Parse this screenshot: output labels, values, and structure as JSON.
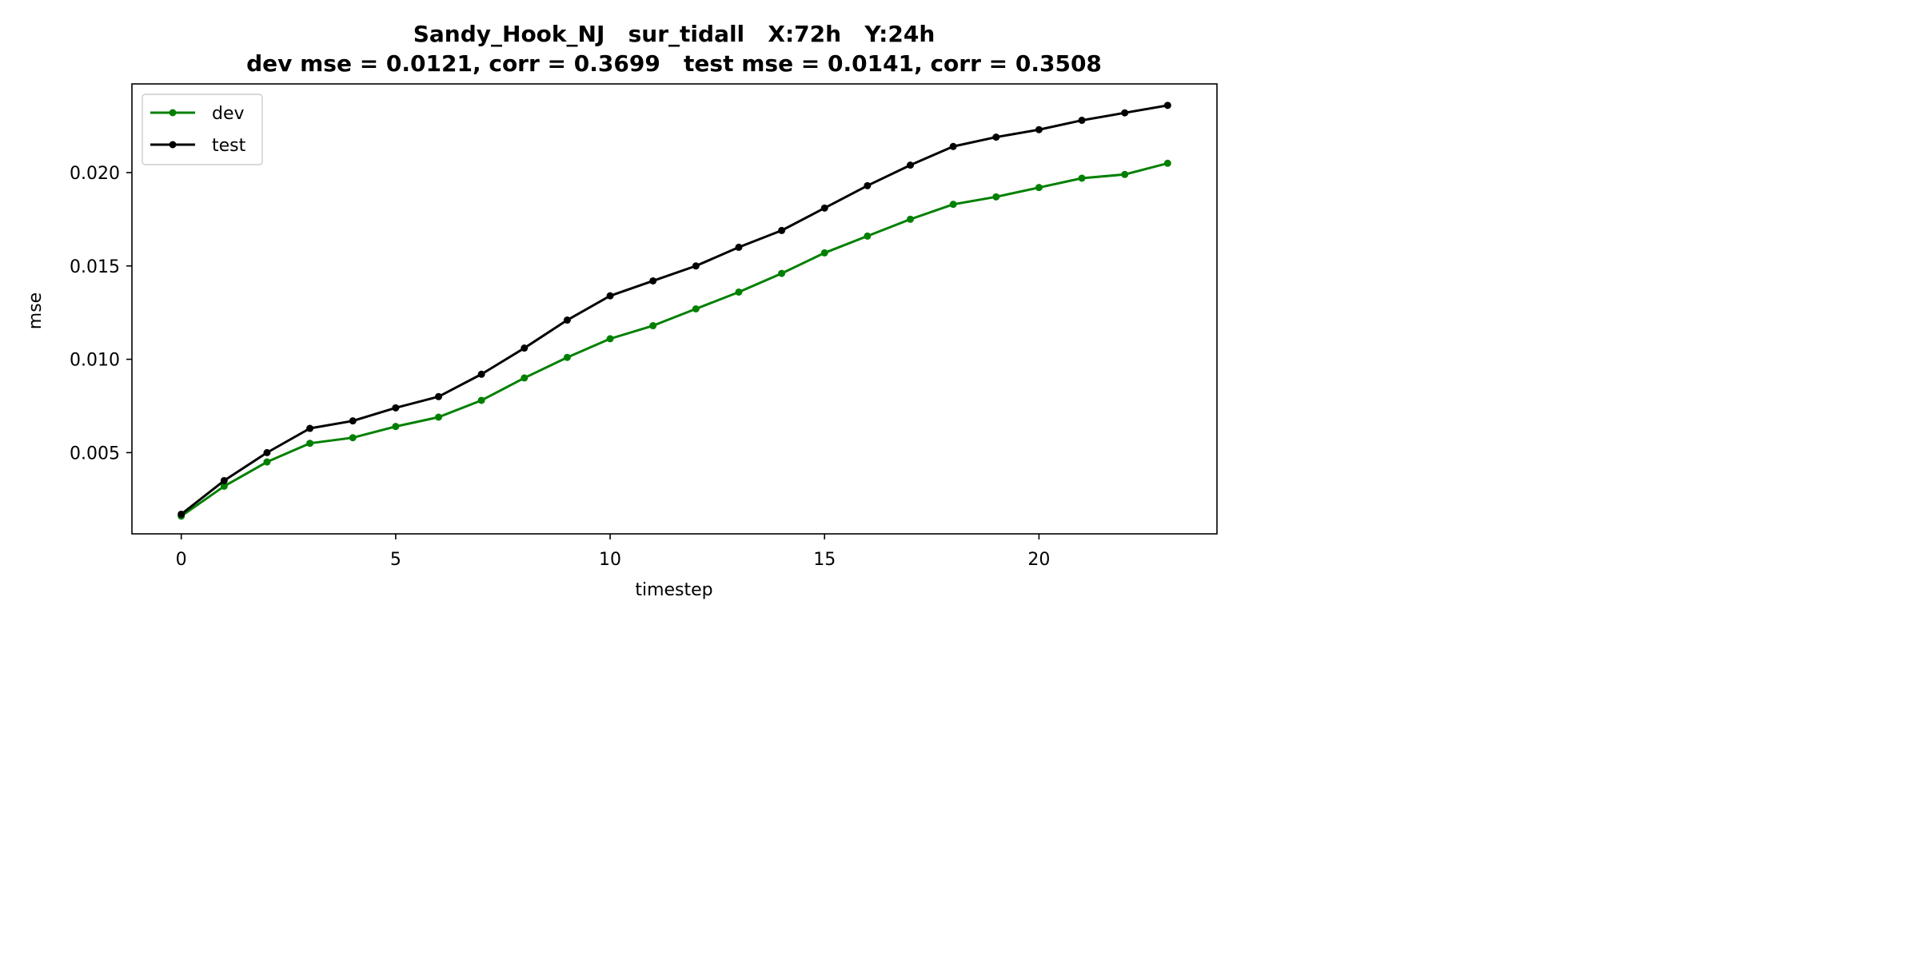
{
  "chart_data": {
    "type": "line",
    "title": "Sandy_Hook_NJ   sur_tidall   X:72h   Y:24h",
    "subtitle": "dev mse = 0.0121, corr = 0.3699   test mse = 0.0141, corr = 0.3508",
    "xlabel": "timestep",
    "ylabel": "mse",
    "xlim": [
      -1.15,
      24.15
    ],
    "ylim": [
      0.00065,
      0.02475
    ],
    "xticks": [
      0,
      5,
      10,
      15,
      20
    ],
    "xtick_labels": [
      "0",
      "5",
      "10",
      "15",
      "20"
    ],
    "yticks": [
      0.005,
      0.01,
      0.015,
      0.02
    ],
    "ytick_labels": [
      "0.005",
      "0.010",
      "0.015",
      "0.020"
    ],
    "grid": false,
    "legend_position": "top-left",
    "x": [
      0,
      1,
      2,
      3,
      4,
      5,
      6,
      7,
      8,
      9,
      10,
      11,
      12,
      13,
      14,
      15,
      16,
      17,
      18,
      19,
      20,
      21,
      22,
      23
    ],
    "series": [
      {
        "name": "dev",
        "color": "#008000",
        "values": [
          0.0016,
          0.0032,
          0.0045,
          0.0055,
          0.0058,
          0.0064,
          0.0069,
          0.0078,
          0.009,
          0.0101,
          0.0111,
          0.0118,
          0.0127,
          0.0136,
          0.0146,
          0.0157,
          0.0166,
          0.0175,
          0.0183,
          0.0187,
          0.0192,
          0.0197,
          0.0199,
          0.0205
        ]
      },
      {
        "name": "test",
        "color": "#000000",
        "values": [
          0.0017,
          0.0035,
          0.005,
          0.0063,
          0.0067,
          0.0074,
          0.008,
          0.0092,
          0.0106,
          0.0121,
          0.0134,
          0.0142,
          0.015,
          0.016,
          0.0169,
          0.0181,
          0.0193,
          0.0204,
          0.0214,
          0.0219,
          0.0223,
          0.0228,
          0.0232,
          0.0236
        ]
      }
    ]
  }
}
